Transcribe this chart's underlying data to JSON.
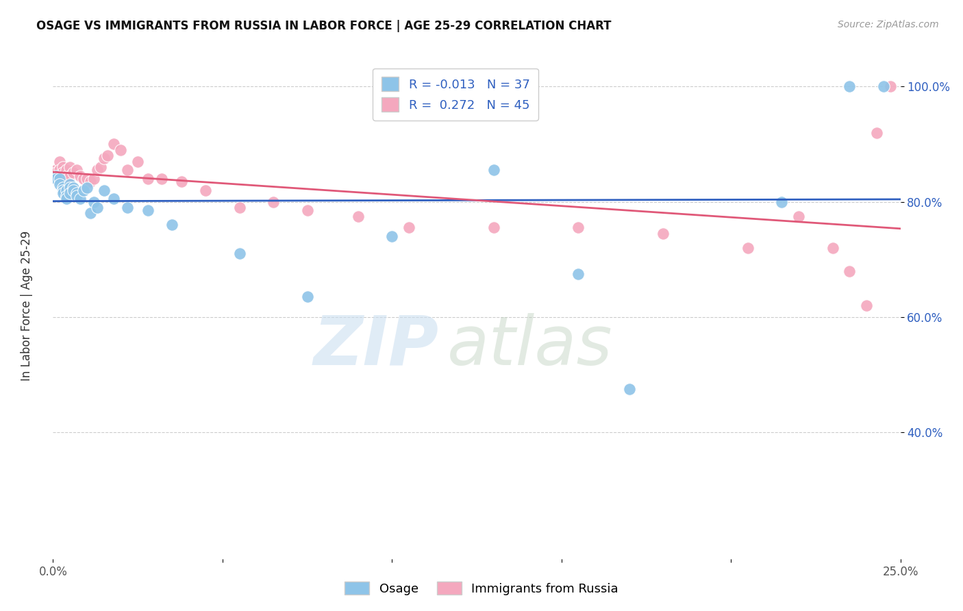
{
  "title": "OSAGE VS IMMIGRANTS FROM RUSSIA IN LABOR FORCE | AGE 25-29 CORRELATION CHART",
  "source": "Source: ZipAtlas.com",
  "ylabel": "In Labor Force | Age 25-29",
  "xlim": [
    0.0,
    0.25
  ],
  "ylim": [
    0.18,
    1.06
  ],
  "yticks": [
    0.4,
    0.6,
    0.8,
    1.0
  ],
  "ytick_labels": [
    "40.0%",
    "60.0%",
    "80.0%",
    "100.0%"
  ],
  "xticks": [
    0.0,
    0.05,
    0.1,
    0.15,
    0.2,
    0.25
  ],
  "xtick_labels": [
    "0.0%",
    "",
    "",
    "",
    "",
    "25.0%"
  ],
  "legend_R_osage": "-0.013",
  "legend_N_osage": "37",
  "legend_R_russia": "0.272",
  "legend_N_russia": "45",
  "osage_color": "#8EC4E8",
  "russia_color": "#F4A8BE",
  "osage_line_color": "#3060C0",
  "russia_line_color": "#E05878",
  "background_color": "#ffffff",
  "osage_x": [
    0.001,
    0.001,
    0.002,
    0.002,
    0.003,
    0.003,
    0.003,
    0.004,
    0.004,
    0.004,
    0.005,
    0.005,
    0.005,
    0.006,
    0.006,
    0.007,
    0.007,
    0.008,
    0.009,
    0.01,
    0.011,
    0.012,
    0.013,
    0.015,
    0.018,
    0.022,
    0.028,
    0.035,
    0.055,
    0.075,
    0.1,
    0.13,
    0.155,
    0.17,
    0.215,
    0.235,
    0.245
  ],
  "osage_y": [
    0.845,
    0.84,
    0.84,
    0.83,
    0.825,
    0.82,
    0.815,
    0.82,
    0.81,
    0.805,
    0.83,
    0.825,
    0.815,
    0.825,
    0.82,
    0.815,
    0.81,
    0.805,
    0.82,
    0.825,
    0.78,
    0.8,
    0.79,
    0.82,
    0.805,
    0.79,
    0.785,
    0.76,
    0.71,
    0.635,
    0.74,
    0.855,
    0.675,
    0.475,
    0.8,
    1.0,
    1.0
  ],
  "russia_x": [
    0.001,
    0.001,
    0.002,
    0.002,
    0.003,
    0.003,
    0.003,
    0.004,
    0.004,
    0.005,
    0.005,
    0.006,
    0.007,
    0.008,
    0.009,
    0.01,
    0.011,
    0.012,
    0.013,
    0.014,
    0.015,
    0.016,
    0.018,
    0.02,
    0.022,
    0.025,
    0.028,
    0.032,
    0.038,
    0.045,
    0.055,
    0.065,
    0.075,
    0.09,
    0.105,
    0.13,
    0.155,
    0.18,
    0.205,
    0.22,
    0.23,
    0.235,
    0.24,
    0.243,
    0.247
  ],
  "russia_y": [
    0.855,
    0.85,
    0.87,
    0.855,
    0.86,
    0.85,
    0.84,
    0.855,
    0.845,
    0.86,
    0.845,
    0.85,
    0.855,
    0.845,
    0.84,
    0.84,
    0.835,
    0.84,
    0.855,
    0.86,
    0.875,
    0.88,
    0.9,
    0.89,
    0.855,
    0.87,
    0.84,
    0.84,
    0.835,
    0.82,
    0.79,
    0.8,
    0.785,
    0.775,
    0.755,
    0.755,
    0.755,
    0.745,
    0.72,
    0.775,
    0.72,
    0.68,
    0.62,
    0.92,
    1.0
  ]
}
